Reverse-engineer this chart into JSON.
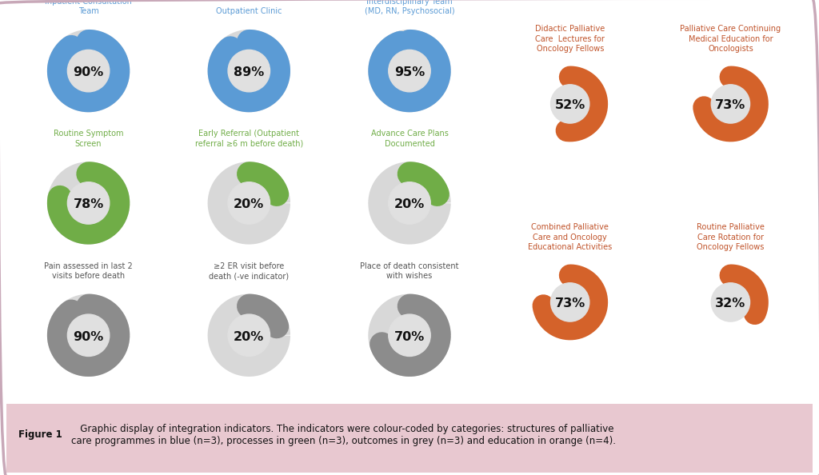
{
  "background_color": "#ffffff",
  "outer_border_color": "#c8a8b8",
  "footer_bg": "#e8c8d0",
  "footer_text_bold": "Figure 1",
  "footer_text_normal": "   Graphic display of integration indicators. The indicators were colour-coded by categories: structures of palliative\ncare programmes in blue (n=3), processes in green (n=3), outcomes in grey (n=3) and education in orange (n=4).",
  "charts": [
    {
      "label": "Inpatient Consultation\nTeam",
      "value": 90,
      "color": "#5b9bd5",
      "label_color": "#5b9bd5",
      "track_color": "#d8d8d8",
      "inner_color": "#e0e0e0",
      "row": 0,
      "col": 0,
      "section": "left"
    },
    {
      "label": "Outpatient Clinic",
      "value": 89,
      "color": "#5b9bd5",
      "label_color": "#5b9bd5",
      "track_color": "#d8d8d8",
      "inner_color": "#e0e0e0",
      "row": 0,
      "col": 1,
      "section": "left"
    },
    {
      "label": "Interdisciplinary Team\n(MD, RN, Psychosocial)",
      "value": 95,
      "color": "#5b9bd5",
      "label_color": "#5b9bd5",
      "track_color": "#d8d8d8",
      "inner_color": "#e0e0e0",
      "row": 0,
      "col": 2,
      "section": "left"
    },
    {
      "label": "Routine Symptom\nScreen",
      "value": 78,
      "color": "#70ad47",
      "label_color": "#70ad47",
      "track_color": "#d8d8d8",
      "inner_color": "#e0e0e0",
      "row": 1,
      "col": 0,
      "section": "left"
    },
    {
      "label": "Early Referral (Outpatient\nreferral ≥6 m before death)",
      "value": 20,
      "color": "#70ad47",
      "label_color": "#70ad47",
      "track_color": "#d8d8d8",
      "inner_color": "#e0e0e0",
      "row": 1,
      "col": 1,
      "section": "left"
    },
    {
      "label": "Advance Care Plans\nDocumented",
      "value": 20,
      "color": "#70ad47",
      "label_color": "#70ad47",
      "track_color": "#d8d8d8",
      "inner_color": "#e0e0e0",
      "row": 1,
      "col": 2,
      "section": "left"
    },
    {
      "label": "Pain assessed in last 2\nvisits before death",
      "value": 90,
      "color": "#8c8c8c",
      "label_color": "#555555",
      "track_color": "#d8d8d8",
      "inner_color": "#e0e0e0",
      "row": 2,
      "col": 0,
      "section": "left"
    },
    {
      "label": "≥2 ER visit before\ndeath (-ve indicator)",
      "value": 20,
      "color": "#8c8c8c",
      "label_color": "#555555",
      "track_color": "#d8d8d8",
      "inner_color": "#e0e0e0",
      "row": 2,
      "col": 1,
      "section": "left"
    },
    {
      "label": "Place of death consistent\nwith wishes",
      "value": 70,
      "color": "#8c8c8c",
      "label_color": "#555555",
      "track_color": "#d8d8d8",
      "inner_color": "#e0e0e0",
      "row": 2,
      "col": 2,
      "section": "left"
    },
    {
      "label": "Didactic Palliative\nCare  Lectures for\nOncology Fellows",
      "value": 52,
      "color": "#d4622a",
      "label_color": "#c0532a",
      "track_color": "none",
      "inner_color": "#e0e0e0",
      "row": 0,
      "col": 0,
      "section": "right"
    },
    {
      "label": "Palliative Care Continuing\nMedical Education for\nOncologists",
      "value": 73,
      "color": "#d4622a",
      "label_color": "#c0532a",
      "track_color": "none",
      "inner_color": "#e0e0e0",
      "row": 0,
      "col": 1,
      "section": "right"
    },
    {
      "label": "Combined Palliative\nCare and Oncology\nEducational Activities",
      "value": 73,
      "color": "#d4622a",
      "label_color": "#c0532a",
      "track_color": "none",
      "inner_color": "#e0e0e0",
      "row": 1,
      "col": 0,
      "section": "right"
    },
    {
      "label": "Routine Palliative\nCare Rotation for\nOncology Fellows",
      "value": 32,
      "color": "#d4622a",
      "label_color": "#c0532a",
      "track_color": "none",
      "inner_color": "#e0e0e0",
      "row": 1,
      "col": 1,
      "section": "right"
    }
  ]
}
